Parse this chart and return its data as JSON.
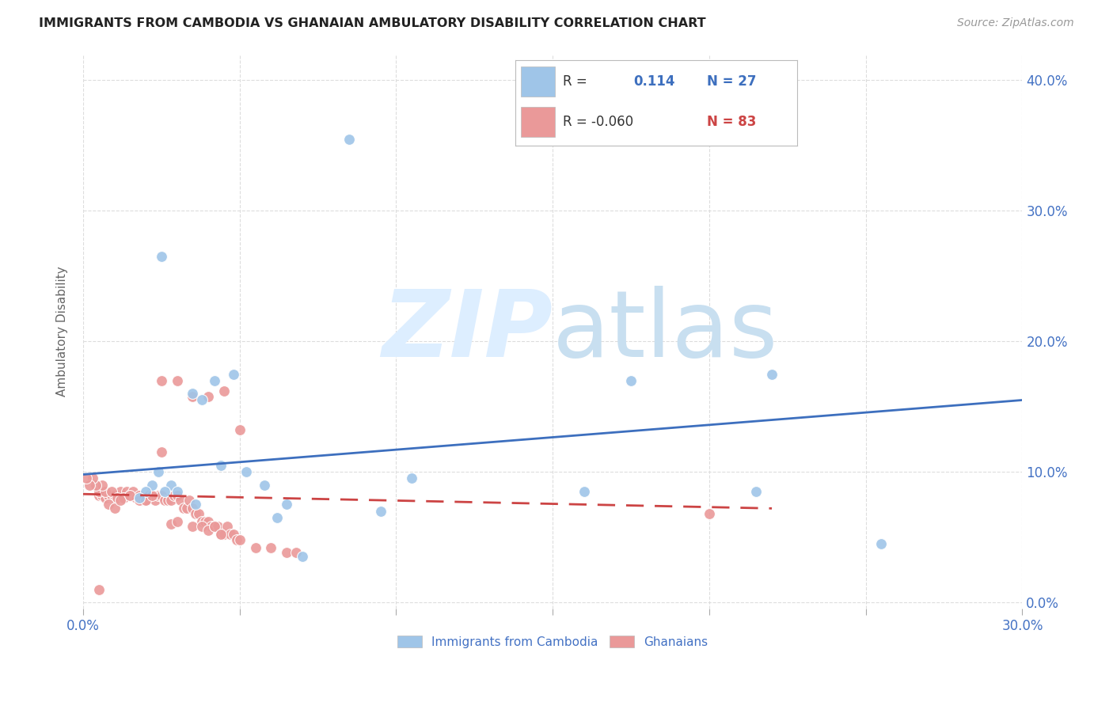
{
  "title": "IMMIGRANTS FROM CAMBODIA VS GHANAIAN AMBULATORY DISABILITY CORRELATION CHART",
  "source": "Source: ZipAtlas.com",
  "ylabel": "Ambulatory Disability",
  "legend_blue_label": "Immigrants from Cambodia",
  "legend_pink_label": "Ghanaians",
  "blue_scatter_x": [
    0.085,
    0.025,
    0.048,
    0.042,
    0.035,
    0.038,
    0.044,
    0.052,
    0.058,
    0.022,
    0.028,
    0.026,
    0.03,
    0.02,
    0.018,
    0.024,
    0.036,
    0.095,
    0.062,
    0.22,
    0.215,
    0.255,
    0.175,
    0.16,
    0.105,
    0.065,
    0.07
  ],
  "blue_scatter_y": [
    0.355,
    0.265,
    0.175,
    0.17,
    0.16,
    0.155,
    0.105,
    0.1,
    0.09,
    0.09,
    0.09,
    0.085,
    0.085,
    0.085,
    0.08,
    0.1,
    0.075,
    0.07,
    0.065,
    0.175,
    0.085,
    0.045,
    0.17,
    0.085,
    0.095,
    0.075,
    0.035
  ],
  "pink_scatter_x": [
    0.005,
    0.006,
    0.007,
    0.008,
    0.009,
    0.01,
    0.011,
    0.012,
    0.013,
    0.014,
    0.015,
    0.016,
    0.017,
    0.018,
    0.019,
    0.02,
    0.021,
    0.022,
    0.023,
    0.024,
    0.025,
    0.026,
    0.027,
    0.028,
    0.029,
    0.03,
    0.031,
    0.032,
    0.033,
    0.034,
    0.035,
    0.036,
    0.037,
    0.038,
    0.039,
    0.04,
    0.041,
    0.042,
    0.043,
    0.044,
    0.045,
    0.046,
    0.047,
    0.048,
    0.049,
    0.05,
    0.055,
    0.06,
    0.065,
    0.068,
    0.005,
    0.007,
    0.009,
    0.011,
    0.013,
    0.006,
    0.004,
    0.003,
    0.002,
    0.001,
    0.025,
    0.03,
    0.035,
    0.04,
    0.045,
    0.05,
    0.008,
    0.01,
    0.012,
    0.015,
    0.018,
    0.02,
    0.022,
    0.025,
    0.028,
    0.03,
    0.035,
    0.038,
    0.04,
    0.042,
    0.044,
    0.2,
    0.005
  ],
  "pink_scatter_y": [
    0.082,
    0.082,
    0.08,
    0.082,
    0.082,
    0.082,
    0.08,
    0.085,
    0.08,
    0.085,
    0.082,
    0.085,
    0.08,
    0.082,
    0.078,
    0.078,
    0.082,
    0.082,
    0.078,
    0.082,
    0.082,
    0.078,
    0.078,
    0.078,
    0.082,
    0.082,
    0.078,
    0.072,
    0.072,
    0.078,
    0.072,
    0.068,
    0.068,
    0.062,
    0.062,
    0.062,
    0.058,
    0.058,
    0.058,
    0.052,
    0.052,
    0.058,
    0.052,
    0.052,
    0.048,
    0.048,
    0.042,
    0.042,
    0.038,
    0.038,
    0.085,
    0.085,
    0.085,
    0.08,
    0.08,
    0.09,
    0.09,
    0.095,
    0.09,
    0.095,
    0.17,
    0.17,
    0.158,
    0.158,
    0.162,
    0.132,
    0.075,
    0.072,
    0.078,
    0.082,
    0.078,
    0.078,
    0.082,
    0.115,
    0.06,
    0.062,
    0.058,
    0.058,
    0.055,
    0.058,
    0.052,
    0.068,
    0.01
  ],
  "blue_line_x": [
    0.0,
    0.3
  ],
  "blue_line_y": [
    0.098,
    0.155
  ],
  "pink_line_x": [
    0.0,
    0.22
  ],
  "pink_line_y": [
    0.083,
    0.072
  ],
  "xlim": [
    0.0,
    0.3
  ],
  "ylim": [
    -0.005,
    0.42
  ],
  "background_color": "#ffffff",
  "blue_color": "#9fc5e8",
  "pink_color": "#ea9999",
  "blue_line_color": "#3d6fbe",
  "pink_line_color": "#cc4444",
  "grid_color": "#dddddd",
  "title_color": "#222222",
  "axis_color": "#4472c4",
  "watermark_zip": "ZIP",
  "watermark_atlas": "atlas",
  "watermark_color_zip": "#ddeeff",
  "watermark_color_atlas": "#c8dff0"
}
